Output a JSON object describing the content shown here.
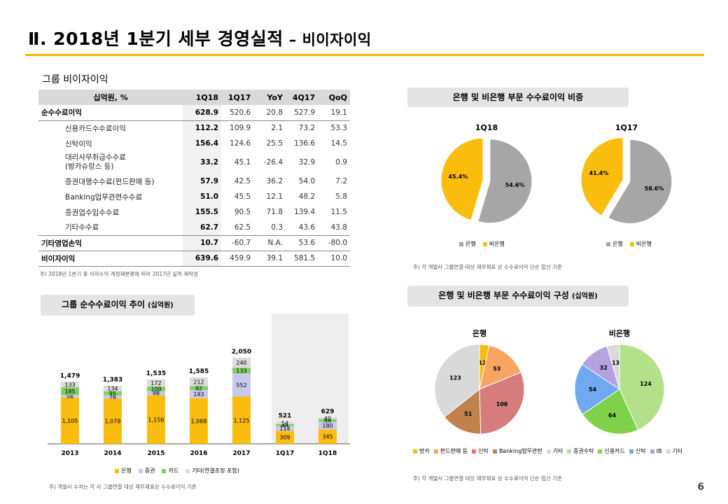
{
  "title": {
    "main": "Ⅱ. 2018년 1분기 세부 경영실적",
    "sub": "– 비이자이익"
  },
  "table": {
    "section_label": "그룹 비이자이익",
    "headers": [
      "십억원, %",
      "1Q18",
      "1Q17",
      "YoY",
      "4Q17",
      "QoQ"
    ],
    "rows": [
      {
        "label": "순수수료이익",
        "c": [
          "628.9",
          "520.6",
          "20.8",
          "527.9",
          "19.1"
        ]
      },
      {
        "label": "신용카드수수료이익",
        "c": [
          "112.2",
          "109.9",
          "2.1",
          "73.2",
          "53.3"
        ]
      },
      {
        "label": "신탁이익",
        "c": [
          "156.4",
          "124.6",
          "25.5",
          "136.6",
          "14.5"
        ]
      },
      {
        "label": "대리사무취급수수료",
        "label2": "(방카슈랑스 등)",
        "c": [
          "33.2",
          "45.1",
          "-26.4",
          "32.9",
          "0.9"
        ]
      },
      {
        "label": "증권대행수수료(펀드판매 등)",
        "c": [
          "57.9",
          "42.5",
          "36.2",
          "54.0",
          "7.2"
        ]
      },
      {
        "label": "Banking업무관련수수료",
        "c": [
          "51.0",
          "45.5",
          "12.1",
          "48.2",
          "5.8"
        ]
      },
      {
        "label": "증권업수입수수료",
        "c": [
          "155.5",
          "90.5",
          "71.8",
          "139.4",
          "11.5"
        ]
      },
      {
        "label": "기타수수료",
        "c": [
          "62.7",
          "62.5",
          "0.3",
          "43.6",
          "43.8"
        ]
      },
      {
        "label": "기타영업손익",
        "c": [
          "10.7",
          "-60.7",
          "N.A.",
          "53.6",
          "-80.0"
        ]
      },
      {
        "label": "비이자이익",
        "c": [
          "639.6",
          "459.9",
          "39.1",
          "581.5",
          "10.0"
        ]
      }
    ],
    "note": "주) 2018년 1분기 중 이자수익 계정재분류에 따라 2017년 실적 재작성"
  },
  "bar_section": {
    "pill": "그룹 순수수료이익 추이",
    "pill_unit": "(십억원)",
    "note": "주) 계열사 수치는 각 사 그룹연결 대상 재무제표상 수수료이익 기준",
    "legend": [
      "은행",
      "증권",
      "카드",
      "기타(연결조정 포함)"
    ]
  },
  "pie1_section": {
    "pill": "은행 및 비은행 부문 수수료이익 비중",
    "note": "주) 각 계열사 그룹연결 대상 재무제표 상 수수료이익 단순 합산 기준",
    "legend": [
      "은행",
      "비은행"
    ]
  },
  "pie2_section": {
    "pill": "은행 및 비은행 부문 수수료이익 구성",
    "pill_unit": "(십억원)",
    "note": "주) 각 계열사 그룹연결 대상 재무제표 상 수수료이익 단순 합산 기준",
    "legend_bank": [
      "방카",
      "펀드판매 등",
      "신탁",
      "Banking업무관련",
      "기타"
    ],
    "legend_nonbank": [
      "증권수탁",
      "신용카드",
      "신탁",
      "IB",
      "기타"
    ]
  },
  "page_number": "6",
  "colors": {
    "bank": "#fbbd0d",
    "securities": "#c9c9ec",
    "card": "#7fcf5f",
    "other": "#dcdcdc",
    "gray": "#a6a6a6"
  },
  "chart_data": [
    {
      "type": "bar",
      "stacked": true,
      "categories": [
        "2013",
        "2014",
        "2015",
        "2016",
        "2017",
        "1Q17",
        "1Q18"
      ],
      "series": [
        {
          "name": "은행",
          "values": [
            1105,
            1078,
            1156,
            1088,
            1125,
            309,
            345
          ]
        },
        {
          "name": "증권",
          "values": [
            56,
            76,
            98,
            193,
            552,
            114,
            180
          ]
        },
        {
          "name": "카드",
          "values": [
            185,
            95,
            109,
            92,
            133,
            44,
            64
          ]
        },
        {
          "name": "기타(연결조정 포함)",
          "values": [
            133,
            134,
            172,
            212,
            240,
            54,
            40
          ]
        }
      ],
      "totals": [
        "1,479",
        "1,383",
        "1,535",
        "1,585",
        "2,050",
        "521",
        "629"
      ],
      "value_labels": [
        [
          "1,105",
          "1,078",
          "1,156",
          "1,088",
          "1,125",
          "309",
          "345"
        ],
        [
          "56",
          "76",
          "98",
          "193",
          "552",
          "114",
          "180"
        ],
        [
          "185",
          "95",
          "109",
          "92",
          "133",
          "44",
          "64"
        ],
        [
          "133",
          "134",
          "172",
          "212",
          "240",
          "54",
          "40"
        ]
      ]
    },
    {
      "type": "pie",
      "title": "1Q18",
      "labels": [
        "은행",
        "비은행"
      ],
      "values": [
        54.6,
        45.4
      ],
      "value_labels": [
        "54.6%",
        "45.4%"
      ]
    },
    {
      "type": "pie",
      "title": "1Q17",
      "labels": [
        "은행",
        "비은행"
      ],
      "values": [
        58.6,
        41.4
      ],
      "value_labels": [
        "58.6%",
        "41.4%"
      ]
    },
    {
      "type": "pie",
      "title": "은행",
      "labels": [
        "방카",
        "펀드판매 등",
        "신탁",
        "Banking업무관련",
        "기타"
      ],
      "values": [
        12,
        53,
        106,
        51,
        123
      ]
    },
    {
      "type": "pie",
      "title": "비은행",
      "labels": [
        "증권수탁",
        "신용카드",
        "신탁",
        "IB",
        "기타"
      ],
      "values": [
        124,
        64,
        54,
        32,
        13
      ]
    }
  ]
}
